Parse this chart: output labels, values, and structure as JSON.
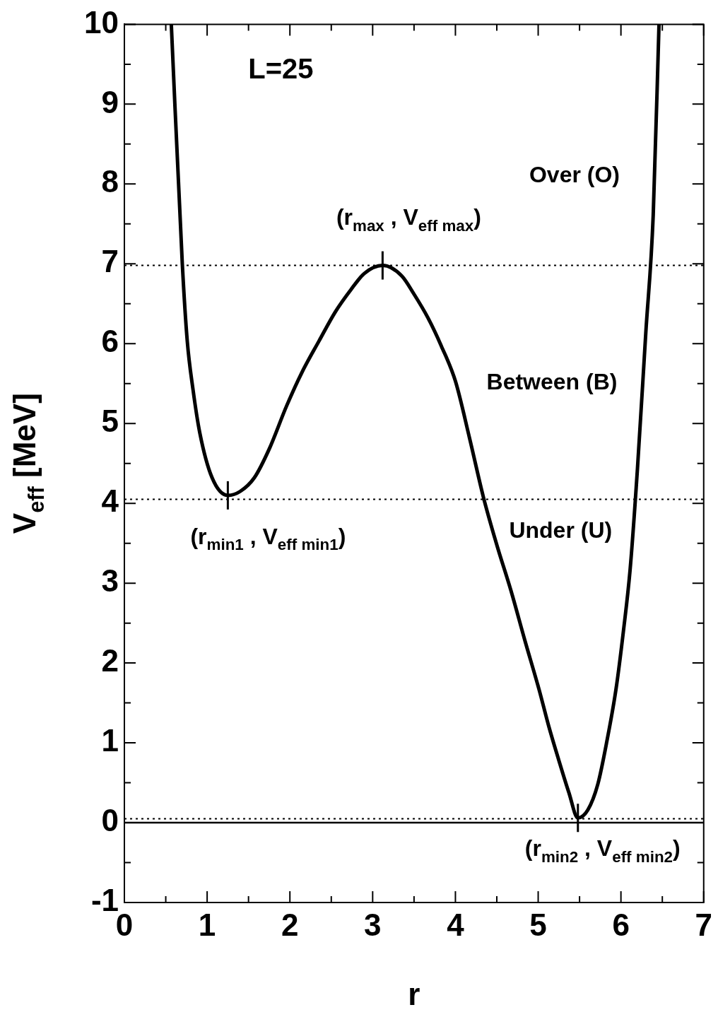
{
  "chart_data": {
    "type": "line",
    "xlabel": "r",
    "ylabel": "V$_{eff}$ [MeV]",
    "x": [
      0.567,
      0.7,
      0.76,
      0.83,
      0.91,
      1.06,
      1.25,
      1.4,
      1.57,
      1.75,
      1.96,
      2.15,
      2.35,
      2.55,
      2.74,
      2.9,
      3.12,
      3.35,
      3.5,
      3.67,
      3.83,
      4.0,
      4.17,
      4.34,
      4.5,
      4.67,
      4.84,
      5.01,
      5.13,
      5.25,
      5.37,
      5.48,
      5.6,
      5.72,
      5.83,
      5.94,
      6.03,
      6.11,
      6.2,
      6.3,
      6.39,
      6.46
    ],
    "series": [
      {
        "color": "#000000",
        "values": [
          10,
          7.0,
          6.03,
          5.42,
          4.89,
          4.32,
          4.1,
          4.15,
          4.32,
          4.68,
          5.22,
          5.65,
          6.03,
          6.4,
          6.68,
          6.88,
          6.98,
          6.85,
          6.62,
          6.32,
          5.97,
          5.53,
          4.82,
          4.07,
          3.48,
          2.91,
          2.28,
          1.67,
          1.2,
          0.78,
          0.38,
          0.06,
          0.16,
          0.48,
          1.02,
          1.67,
          2.4,
          3.16,
          4.44,
          6.13,
          7.61,
          10
        ]
      }
    ],
    "xlim": [
      0,
      7
    ],
    "ylim": [
      -1,
      10
    ],
    "xticks": [
      0,
      {
        "value": 0.5,
        "label": null
      },
      1,
      {
        "value": 1.5,
        "label": null
      },
      2,
      {
        "value": 2.5,
        "label": null
      },
      3,
      {
        "value": 3.5,
        "label": null
      },
      4,
      {
        "value": 4.5,
        "label": null
      },
      5,
      {
        "value": 5.5,
        "label": null
      },
      6,
      {
        "value": 6.5,
        "label": null
      },
      7
    ],
    "yticks": [
      -1,
      {
        "value": -0.5,
        "label": null
      },
      0,
      {
        "value": 0.5,
        "label": null
      },
      1,
      {
        "value": 1.5,
        "label": null
      },
      2,
      {
        "value": 2.5,
        "label": null
      },
      3,
      {
        "value": 3.5,
        "label": null
      },
      4,
      {
        "value": 4.5,
        "label": null
      },
      5,
      {
        "value": 5.5,
        "label": null
      },
      6,
      {
        "value": 6.5,
        "label": null
      },
      7,
      {
        "value": 7.5,
        "label": null
      },
      8,
      {
        "value": 8.5,
        "label": null
      },
      9,
      {
        "value": 9.5,
        "label": null
      },
      10
    ],
    "grid": false,
    "legend": false,
    "line_style": "solid",
    "ref_lines": [
      {
        "axis": "y",
        "value": 0,
        "line_style": "solid"
      },
      {
        "axis": "y",
        "value": 6.98,
        "line_style": "dotted"
      },
      {
        "axis": "y",
        "value": 4.05,
        "line_style": "dotted"
      },
      {
        "axis": "y",
        "value": 0.05,
        "line_style": "dotted"
      }
    ],
    "annotations": [
      "L=25",
      "Over (O)",
      {
        "text": "(r$_{max}$ , V$_{eff max}$)",
        "x": 3.12,
        "y": 6.98
      },
      "Between (B)",
      {
        "text": "(r$_{min1}$ , V$_{eff min1}$)",
        "x": 1.25,
        "y": 4.1
      },
      "Under (U)",
      {
        "text": "(r$_{min2}$ , V$_{eff min2}$)",
        "x": 5.48,
        "y": 0.06
      }
    ]
  }
}
